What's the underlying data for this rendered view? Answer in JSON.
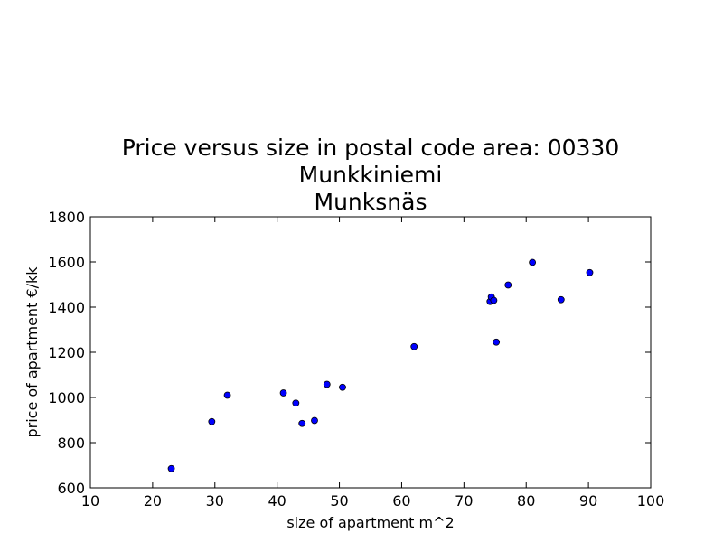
{
  "chart_data": {
    "type": "scatter",
    "title_lines": [
      "Price versus size in postal code area: 00330",
      "Munkkiniemi",
      "Munksnäs"
    ],
    "xlabel": "size of apartment m^2",
    "ylabel": "price of apartment €/kk",
    "xlim": [
      10,
      100
    ],
    "ylim": [
      600,
      1800
    ],
    "xticks": [
      10,
      20,
      30,
      40,
      50,
      60,
      70,
      80,
      90,
      100
    ],
    "yticks": [
      600,
      800,
      1000,
      1200,
      1400,
      1600,
      1800
    ],
    "grid": false,
    "marker_color": "#0000ff",
    "points": [
      {
        "x": 23,
        "y": 685
      },
      {
        "x": 29.5,
        "y": 893
      },
      {
        "x": 32,
        "y": 1010
      },
      {
        "x": 41,
        "y": 1020
      },
      {
        "x": 43,
        "y": 975
      },
      {
        "x": 44,
        "y": 885
      },
      {
        "x": 46,
        "y": 898
      },
      {
        "x": 48,
        "y": 1058
      },
      {
        "x": 50.5,
        "y": 1045
      },
      {
        "x": 62,
        "y": 1225
      },
      {
        "x": 74.2,
        "y": 1425
      },
      {
        "x": 74.4,
        "y": 1445
      },
      {
        "x": 74.8,
        "y": 1430
      },
      {
        "x": 75.2,
        "y": 1245
      },
      {
        "x": 77.1,
        "y": 1498
      },
      {
        "x": 81,
        "y": 1598
      },
      {
        "x": 85.6,
        "y": 1433
      },
      {
        "x": 90.2,
        "y": 1553
      }
    ]
  }
}
